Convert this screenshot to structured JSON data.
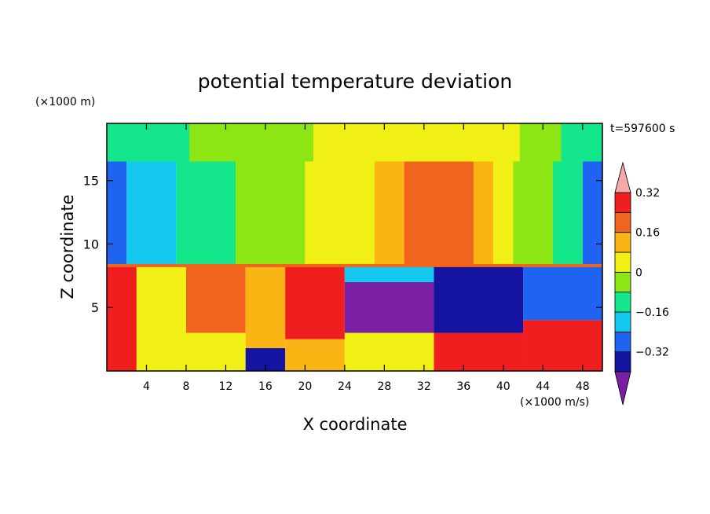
{
  "chart_data": {
    "type": "heatmap",
    "title": "potential temperature deviation",
    "xlabel": "X coordinate",
    "ylabel": "Z coordinate",
    "x_unit": "(×1000 m/s)",
    "y_unit": "(×1000 m)",
    "time_label": "t=597600 s",
    "xlim": [
      0,
      50
    ],
    "ylim": [
      0,
      19.5
    ],
    "x_ticks": [
      4,
      8,
      12,
      16,
      20,
      24,
      28,
      32,
      36,
      40,
      44,
      48
    ],
    "y_ticks": [
      5,
      10,
      15
    ],
    "colorbar": {
      "levels": [
        -0.48,
        -0.4,
        -0.32,
        -0.24,
        -0.16,
        -0.08,
        0,
        0.08,
        0.16,
        0.24,
        0.32,
        0.4
      ],
      "colors": [
        "#7a1fa2",
        "#1414a0",
        "#1e64f0",
        "#14c8f0",
        "#14e68c",
        "#8ce614",
        "#f0f014",
        "#fab414",
        "#f0641e",
        "#f01e1e",
        "#f5aaaa"
      ],
      "tick_labels": [
        "0.32",
        "0.16",
        "0",
        "−0.16",
        "−0.32"
      ],
      "tick_values": [
        0.32,
        0.16,
        0,
        -0.16,
        -0.32
      ],
      "extend": "both"
    },
    "field": {
      "upper_band_columns": [
        {
          "x0": 0,
          "x1": 2,
          "value": -0.3
        },
        {
          "x0": 2,
          "x1": 7,
          "value": -0.2
        },
        {
          "x0": 7,
          "x1": 13,
          "value": -0.12
        },
        {
          "x0": 13,
          "x1": 20,
          "value": -0.05
        },
        {
          "x0": 20,
          "x1": 27,
          "value": 0.05
        },
        {
          "x0": 27,
          "x1": 30,
          "value": 0.15
        },
        {
          "x0": 30,
          "x1": 37,
          "value": 0.2
        },
        {
          "x0": 37,
          "x1": 39,
          "value": 0.12
        },
        {
          "x0": 39,
          "x1": 41,
          "value": 0.05
        },
        {
          "x0": 41,
          "x1": 45,
          "value": -0.05
        },
        {
          "x0": 45,
          "x1": 48,
          "value": -0.15
        },
        {
          "x0": 48,
          "x1": 50,
          "value": -0.28
        }
      ],
      "top_layer_values": [
        -0.12,
        -0.12,
        -0.05,
        -0.05,
        -0.05,
        0.05,
        0.05,
        0.05,
        0.05,
        0.05,
        -0.05,
        -0.12
      ],
      "tropopause_z": 8.3,
      "lower_band_cells": [
        {
          "x0": 0,
          "x1": 3,
          "z0": 0,
          "z1": 8.3,
          "value": 0.3
        },
        {
          "x0": 3,
          "x1": 8,
          "z0": 0,
          "z1": 8.3,
          "value": 0.05
        },
        {
          "x0": 8,
          "x1": 14,
          "z0": 3,
          "z1": 8.3,
          "value": 0.2
        },
        {
          "x0": 8,
          "x1": 14,
          "z0": 0,
          "z1": 3,
          "value": 0.0
        },
        {
          "x0": 14,
          "x1": 18,
          "z0": 0,
          "z1": 1.8,
          "value": -0.4
        },
        {
          "x0": 14,
          "x1": 18,
          "z0": 1.8,
          "z1": 8.3,
          "value": 0.1
        },
        {
          "x0": 18,
          "x1": 24,
          "z0": 2.5,
          "z1": 8.3,
          "value": 0.3
        },
        {
          "x0": 18,
          "x1": 24,
          "z0": 0,
          "z1": 2.5,
          "value": 0.12
        },
        {
          "x0": 24,
          "x1": 33,
          "z0": 3,
          "z1": 7,
          "value": -0.42
        },
        {
          "x0": 24,
          "x1": 33,
          "z0": 7,
          "z1": 8.3,
          "value": -0.2
        },
        {
          "x0": 24,
          "x1": 33,
          "z0": 0,
          "z1": 3,
          "value": 0.05
        },
        {
          "x0": 33,
          "x1": 42,
          "z0": 3,
          "z1": 8.3,
          "value": -0.38
        },
        {
          "x0": 33,
          "x1": 42,
          "z0": 0,
          "z1": 3,
          "value": 0.25
        },
        {
          "x0": 42,
          "x1": 50,
          "z0": 4,
          "z1": 8.3,
          "value": -0.25
        },
        {
          "x0": 42,
          "x1": 50,
          "z0": 0,
          "z1": 4,
          "value": 0.3
        }
      ]
    }
  }
}
